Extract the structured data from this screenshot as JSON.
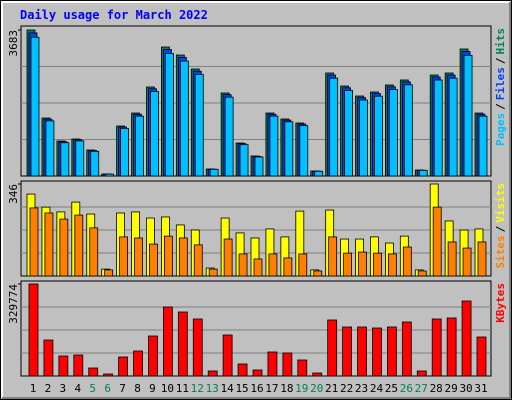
{
  "chart_data": [
    {
      "type": "bar",
      "title": "Daily usage for March 2022",
      "title_color": "#0000ff",
      "legend_separator": "/",
      "series": [
        {
          "name": "Hits",
          "color": "#00805c",
          "values": [
            3683,
            1463,
            883,
            933,
            656,
            50,
            1261,
            1589,
            2245,
            3254,
            3052,
            2699,
            177,
            2094,
            832,
            505,
            1589,
            1438,
            1337,
            126,
            2598,
            2270,
            2018,
            2119,
            2296,
            2422,
            151,
            2548,
            2598,
            3204,
            1589
          ]
        },
        {
          "name": "Files",
          "color": "#0040ff",
          "values": [
            3610,
            1434,
            865,
            914,
            643,
            49,
            1236,
            1557,
            2200,
            3189,
            2991,
            2645,
            173,
            2052,
            815,
            495,
            1557,
            1409,
            1310,
            123,
            2546,
            2225,
            1978,
            2077,
            2250,
            2374,
            148,
            2497,
            2546,
            3140,
            1557
          ]
        },
        {
          "name": "Pages",
          "color": "#00c0ff",
          "values": [
            3500,
            1390,
            839,
            886,
            623,
            47,
            1198,
            1510,
            2133,
            3091,
            2899,
            2564,
            168,
            1989,
            790,
            480,
            1510,
            1366,
            1270,
            120,
            2468,
            2157,
            1917,
            2013,
            2181,
            2301,
            143,
            2421,
            2468,
            3044,
            1510
          ]
        }
      ],
      "ylim": [
        0,
        3683
      ],
      "yticks": [
        3683
      ]
    },
    {
      "type": "bar",
      "legend_separator": "/",
      "series": [
        {
          "name": "Visits",
          "color": "#ffff00",
          "values": [
            308,
            259,
            241,
            278,
            233,
            26,
            237,
            241,
            218,
            222,
            192,
            173,
            30,
            218,
            162,
            143,
            177,
            147,
            244,
            23,
            248,
            139,
            139,
            147,
            124,
            150,
            23,
            346,
            207,
            173,
            177
          ]
        },
        {
          "name": "Sites",
          "color": "#ff8000",
          "values": [
            256,
            237,
            214,
            229,
            181,
            23,
            147,
            143,
            120,
            150,
            143,
            117,
            26,
            139,
            83,
            64,
            83,
            68,
            83,
            19,
            147,
            86,
            90,
            86,
            83,
            109,
            19,
            259,
            128,
            105,
            128
          ]
        }
      ],
      "ylim": [
        0,
        346
      ],
      "yticks": [
        346
      ]
    },
    {
      "type": "bar",
      "series": [
        {
          "name": "KBytes",
          "color": "#ff0000",
          "values": [
            329774,
            129042,
            71690,
            75275,
            28676,
            7169,
            68106,
            89613,
            143380,
            247331,
            229408,
            204318,
            17922,
            146965,
            43014,
            21507,
            86028,
            82443,
            57352,
            10754,
            200734,
            175643,
            175643,
            172058,
            175643,
            193565,
            17922,
            204318,
            207903,
            268835,
            139795
          ]
        }
      ],
      "ylim": [
        0,
        329774
      ],
      "yticks": [
        329774
      ],
      "categories": [
        "1",
        "2",
        "3",
        "4",
        "5",
        "6",
        "7",
        "8",
        "9",
        "10",
        "11",
        "12",
        "13",
        "14",
        "15",
        "16",
        "17",
        "18",
        "19",
        "20",
        "21",
        "22",
        "23",
        "24",
        "25",
        "26",
        "27",
        "28",
        "29",
        "30",
        "31"
      ],
      "category_colors": [
        "#000000",
        "#000000",
        "#000000",
        "#000000",
        "#00805c",
        "#00805c",
        "#000000",
        "#000000",
        "#000000",
        "#000000",
        "#000000",
        "#00805c",
        "#00805c",
        "#000000",
        "#000000",
        "#000000",
        "#000000",
        "#000000",
        "#00805c",
        "#00805c",
        "#000000",
        "#000000",
        "#000000",
        "#000000",
        "#000000",
        "#00805c",
        "#00805c",
        "#000000",
        "#000000",
        "#000000",
        "#000000"
      ]
    }
  ]
}
